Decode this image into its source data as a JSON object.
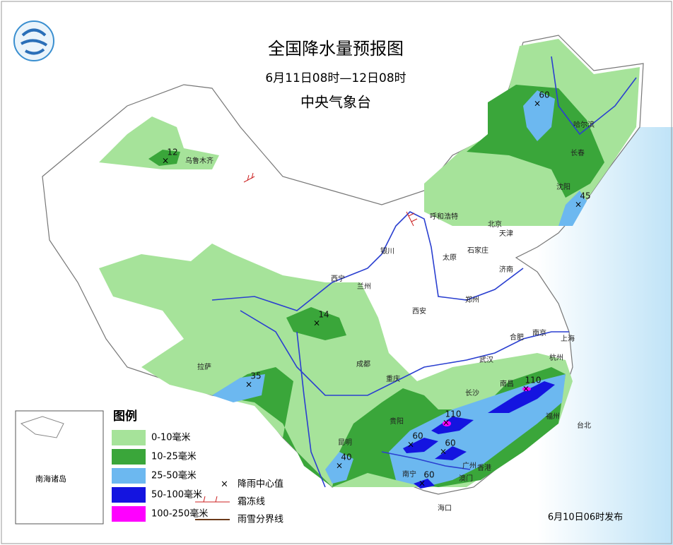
{
  "header": {
    "title": "全国降水量预报图",
    "period": "6月11日08时—12日08时",
    "issuer": "中央气象台"
  },
  "legend": {
    "title": "图例",
    "items": [
      {
        "label": "0-10毫米",
        "color": "#a6e39a"
      },
      {
        "label": "10-25毫米",
        "color": "#3aa63a"
      },
      {
        "label": "25-50毫米",
        "color": "#6cb8f0"
      },
      {
        "label": "50-100毫米",
        "color": "#1414e0"
      },
      {
        "label": "100-250毫米",
        "color": "#ff00ff"
      }
    ],
    "symbols": [
      "降雨中心值",
      "霜冻线",
      "雨雪分界线"
    ]
  },
  "cities": [
    "乌鲁木齐",
    "哈尔滨",
    "长春",
    "沈阳",
    "呼和浩特",
    "北京",
    "天津",
    "石家庄",
    "太原",
    "济南",
    "银川",
    "西宁",
    "兰州",
    "郑州",
    "西安",
    "合肥",
    "南京",
    "上海",
    "武汉",
    "杭州",
    "成都",
    "重庆",
    "拉萨",
    "长沙",
    "南昌",
    "贵阳",
    "福州",
    "台北",
    "昆明",
    "南宁",
    "广州",
    "香港",
    "澳门",
    "海口"
  ],
  "centers": [
    12,
    60,
    45,
    14,
    35,
    40,
    110,
    110,
    60,
    60,
    60
  ],
  "inset_label": "南海诸岛",
  "issued": "6月10日06时发布"
}
